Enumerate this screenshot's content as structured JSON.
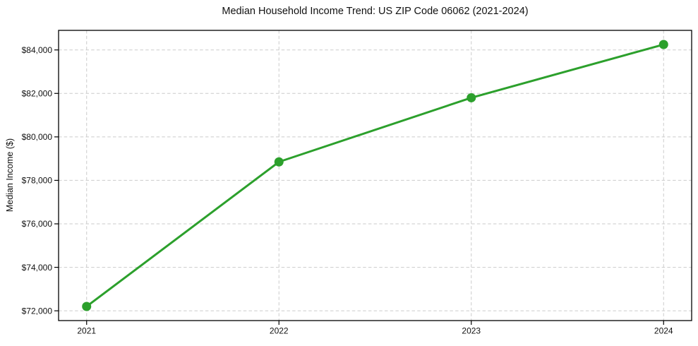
{
  "chart_data": {
    "type": "line",
    "title": "Median Household Income Trend: US ZIP Code 06062 (2021-2024)",
    "xlabel": "",
    "ylabel": "Median Income ($)",
    "categories": [
      "2021",
      "2022",
      "2023",
      "2024"
    ],
    "series": [
      {
        "name": "Median Household Income",
        "values": [
          72200,
          78850,
          81800,
          84250
        ]
      }
    ],
    "ylim": [
      71550,
      84900
    ],
    "yticks": [
      72000,
      74000,
      76000,
      78000,
      80000,
      82000,
      84000
    ],
    "ytick_prefix": "$",
    "grid": true,
    "grid_style": "dashed",
    "legend": "none",
    "colors": {
      "line": "#2ca02c",
      "marker": "#2ca02c",
      "grid": "#cbcbcb",
      "spine": "#000000",
      "text": "#111111",
      "background": "#ffffff"
    }
  }
}
